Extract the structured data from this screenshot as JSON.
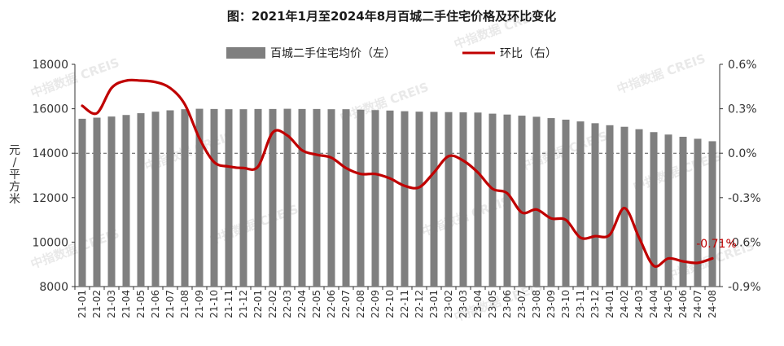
{
  "chart_data": {
    "type": "bar+line",
    "title": "图：2021年1月至2024年8月百城二手住宅价格及环比变化",
    "ylabel_left": "元/平方米",
    "left_axis": {
      "min": 8000,
      "max": 18000,
      "ticks": [
        "8000",
        "10000",
        "12000",
        "14000",
        "16000",
        "18000"
      ]
    },
    "right_axis": {
      "min": -0.9,
      "max": 0.6,
      "ticks": [
        "-0.9%",
        "-0.6%",
        "-0.3%",
        "0.0%",
        "0.3%",
        "0.6%"
      ]
    },
    "legend": {
      "bar": "百城二手住宅均价（左）",
      "line": "环比（右）"
    },
    "watermark": "中指数据 CREIS",
    "categories": [
      "21-01",
      "21-02",
      "21-03",
      "21-04",
      "21-05",
      "21-06",
      "21-07",
      "21-08",
      "21-09",
      "21-10",
      "21-11",
      "21-12",
      "22-01",
      "22-02",
      "22-03",
      "22-04",
      "22-05",
      "22-06",
      "22-07",
      "22-08",
      "22-09",
      "22-10",
      "22-11",
      "22-12",
      "23-01",
      "23-02",
      "23-03",
      "23-04",
      "23-05",
      "23-06",
      "23-07",
      "23-08",
      "23-09",
      "23-10",
      "23-11",
      "23-12",
      "24-01",
      "24-02",
      "24-03",
      "24-04",
      "24-05",
      "24-06",
      "24-07",
      "24-08"
    ],
    "series": [
      {
        "name": "百城二手住宅均价（左）",
        "axis": "left",
        "color": "#7f7f7f",
        "values": [
          15550,
          15600,
          15650,
          15720,
          15800,
          15870,
          15930,
          15980,
          16000,
          15990,
          15980,
          15980,
          15990,
          15990,
          16000,
          15990,
          15990,
          15980,
          15980,
          15960,
          15940,
          15920,
          15890,
          15870,
          15860,
          15850,
          15840,
          15830,
          15780,
          15740,
          15690,
          15640,
          15580,
          15510,
          15430,
          15350,
          15260,
          15190,
          15080,
          14950,
          14840,
          14740,
          14650,
          14540
        ]
      },
      {
        "name": "环比（右）",
        "axis": "right",
        "color": "#c00000",
        "values": [
          0.32,
          0.27,
          0.44,
          0.49,
          0.49,
          0.48,
          0.44,
          0.33,
          0.1,
          -0.06,
          -0.09,
          -0.1,
          -0.09,
          0.14,
          0.12,
          0.02,
          -0.01,
          -0.03,
          -0.1,
          -0.14,
          -0.14,
          -0.17,
          -0.22,
          -0.23,
          -0.13,
          -0.02,
          -0.05,
          -0.13,
          -0.24,
          -0.27,
          -0.4,
          -0.38,
          -0.44,
          -0.45,
          -0.57,
          -0.56,
          -0.55,
          -0.37,
          -0.57,
          -0.76,
          -0.71,
          -0.73,
          -0.74,
          -0.71
        ]
      }
    ],
    "last_value_label": "-0.71%",
    "grid": false,
    "legend_position": "top"
  }
}
